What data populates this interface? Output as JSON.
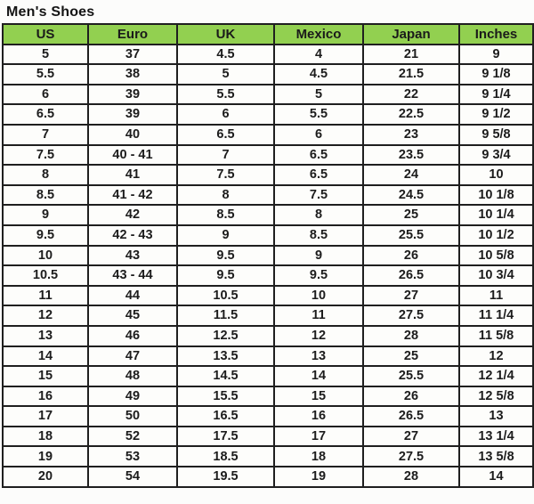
{
  "page": {
    "title": "Men's Shoes"
  },
  "colors": {
    "header_green": "#92d050",
    "border": "#1f1f1f",
    "cell_background": "#fdfdfb",
    "text": "#1c1c1c"
  },
  "chart_data": {
    "type": "table",
    "title": "Men's Shoes",
    "columns": [
      "US",
      "Euro",
      "UK",
      "Mexico",
      "Japan",
      "Inches"
    ],
    "rows": [
      [
        "5",
        "37",
        "4.5",
        "4",
        "21",
        "9"
      ],
      [
        "5.5",
        "38",
        "5",
        "4.5",
        "21.5",
        "9 1/8"
      ],
      [
        "6",
        "39",
        "5.5",
        "5",
        "22",
        "9 1/4"
      ],
      [
        "6.5",
        "39",
        "6",
        "5.5",
        "22.5",
        "9 1/2"
      ],
      [
        "7",
        "40",
        "6.5",
        "6",
        "23",
        "9 5/8"
      ],
      [
        "7.5",
        "40 - 41",
        "7",
        "6.5",
        "23.5",
        "9 3/4"
      ],
      [
        "8",
        "41",
        "7.5",
        "6.5",
        "24",
        "10"
      ],
      [
        "8.5",
        "41 - 42",
        "8",
        "7.5",
        "24.5",
        "10 1/8"
      ],
      [
        "9",
        "42",
        "8.5",
        "8",
        "25",
        "10 1/4"
      ],
      [
        "9.5",
        "42 - 43",
        "9",
        "8.5",
        "25.5",
        "10 1/2"
      ],
      [
        "10",
        "43",
        "9.5",
        "9",
        "26",
        "10 5/8"
      ],
      [
        "10.5",
        "43 - 44",
        "9.5",
        "9.5",
        "26.5",
        "10 3/4"
      ],
      [
        "11",
        "44",
        "10.5",
        "10",
        "27",
        "11"
      ],
      [
        "12",
        "45",
        "11.5",
        "11",
        "27.5",
        "11 1/4"
      ],
      [
        "13",
        "46",
        "12.5",
        "12",
        "28",
        "11 5/8"
      ],
      [
        "14",
        "47",
        "13.5",
        "13",
        "25",
        "12"
      ],
      [
        "15",
        "48",
        "14.5",
        "14",
        "25.5",
        "12 1/4"
      ],
      [
        "16",
        "49",
        "15.5",
        "15",
        "26",
        "12 5/8"
      ],
      [
        "17",
        "50",
        "16.5",
        "16",
        "26.5",
        "13"
      ],
      [
        "18",
        "52",
        "17.5",
        "17",
        "27",
        "13 1/4"
      ],
      [
        "19",
        "53",
        "18.5",
        "18",
        "27.5",
        "13 5/8"
      ],
      [
        "20",
        "54",
        "19.5",
        "19",
        "28",
        "14"
      ]
    ]
  }
}
